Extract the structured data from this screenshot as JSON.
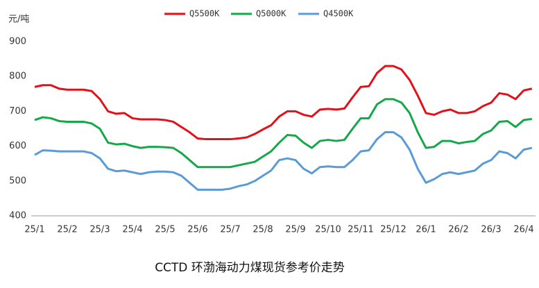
{
  "chart_data": {
    "type": "line",
    "title": "CCTD 环渤海动力煤现货参考价走势",
    "y_label": "元/吨",
    "categories": [
      "25/1",
      null,
      null,
      null,
      "25/2",
      null,
      null,
      null,
      "25/3",
      null,
      null,
      null,
      "25/4",
      null,
      null,
      null,
      "25/5",
      null,
      null,
      null,
      "25/6",
      null,
      null,
      null,
      "25/7",
      null,
      null,
      null,
      "25/8",
      null,
      null,
      null,
      "25/9",
      null,
      null,
      null,
      "25/10",
      null,
      null,
      null,
      "25/11",
      null,
      null,
      null,
      "25/12",
      null,
      null,
      null,
      "26/1",
      null,
      null,
      null,
      "26/2",
      null,
      null,
      null,
      "26/3",
      null,
      null,
      null,
      "26/4",
      null
    ],
    "series": [
      {
        "name": "Q5500K",
        "color": "#e3101a",
        "values": [
          770,
          775,
          775,
          765,
          762,
          762,
          762,
          758,
          735,
          700,
          693,
          695,
          680,
          677,
          677,
          677,
          675,
          670,
          655,
          640,
          622,
          620,
          620,
          620,
          620,
          622,
          625,
          635,
          648,
          660,
          685,
          700,
          700,
          690,
          685,
          705,
          707,
          705,
          708,
          740,
          770,
          772,
          810,
          830,
          830,
          820,
          790,
          745,
          695,
          690,
          700,
          705,
          695,
          695,
          700,
          715,
          725,
          752,
          748,
          735,
          760,
          765
        ]
      },
      {
        "name": "Q5000K",
        "color": "#14a84a",
        "values": [
          675,
          683,
          680,
          672,
          670,
          670,
          670,
          665,
          650,
          610,
          605,
          607,
          600,
          595,
          598,
          598,
          597,
          595,
          580,
          560,
          540,
          540,
          540,
          540,
          540,
          545,
          550,
          555,
          570,
          585,
          610,
          632,
          630,
          610,
          595,
          615,
          618,
          615,
          618,
          650,
          680,
          680,
          720,
          735,
          735,
          725,
          695,
          640,
          595,
          598,
          615,
          615,
          608,
          612,
          615,
          635,
          645,
          670,
          672,
          655,
          675,
          678
        ]
      },
      {
        "name": "Q4500K",
        "color": "#5b9bd5",
        "values": [
          575,
          588,
          587,
          585,
          585,
          585,
          585,
          580,
          565,
          535,
          528,
          530,
          525,
          520,
          525,
          527,
          527,
          525,
          515,
          495,
          475,
          475,
          475,
          475,
          478,
          485,
          490,
          500,
          515,
          530,
          560,
          565,
          560,
          535,
          522,
          540,
          542,
          540,
          540,
          560,
          585,
          588,
          620,
          640,
          640,
          625,
          590,
          535,
          495,
          505,
          520,
          525,
          520,
          525,
          530,
          550,
          560,
          585,
          580,
          565,
          590,
          595
        ]
      }
    ],
    "ylim": [
      400,
      900
    ],
    "yticks": [
      400,
      500,
      600,
      700,
      800,
      900
    ],
    "grid": false,
    "legend": "top"
  }
}
